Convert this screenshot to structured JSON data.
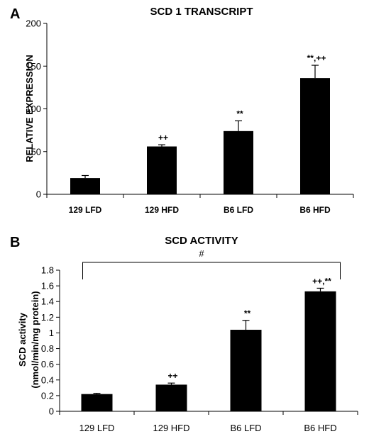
{
  "colors": {
    "bar": "#000000",
    "axis": "#000000",
    "background": "#ffffff"
  },
  "panels": [
    {
      "letter": "A",
      "title": "SCD 1 TRANSCRIPT",
      "ylabel": "RELATIVE EXPRESSION",
      "ylim": [
        0,
        200
      ],
      "yticks": [
        "0",
        "50",
        "100",
        "150",
        "200"
      ],
      "categories": [
        "129 LFD",
        "129 HFD",
        "B6 LFD",
        "B6 HFD"
      ],
      "values": [
        19,
        56,
        74,
        136
      ],
      "errors": [
        3,
        2,
        12,
        15
      ],
      "annotations": [
        "",
        "++",
        "**",
        "**,++"
      ]
    },
    {
      "letter": "B",
      "title": "SCD ACTIVITY",
      "ylabel": "SCD activity",
      "ylabel2": "(nmol/min/mg protein)",
      "ylim": [
        0,
        1.8
      ],
      "yticks": [
        "0",
        "0.2",
        "0.4",
        "0.6",
        "0.8",
        "1",
        "1.2",
        "1.4",
        "1.6",
        "1.8"
      ],
      "categories": [
        "129 LFD",
        "129 HFD",
        "B6 LFD",
        "B6 HFD"
      ],
      "values": [
        0.22,
        0.34,
        1.04,
        1.53
      ],
      "errors": [
        0.01,
        0.02,
        0.12,
        0.04
      ],
      "annotations": [
        "",
        "++",
        "**",
        "++,**"
      ],
      "bracket_label": "#"
    }
  ],
  "chart_data": [
    {
      "type": "bar",
      "title": "SCD 1 TRANSCRIPT",
      "ylabel": "RELATIVE EXPRESSION",
      "categories": [
        "129 LFD",
        "129 HFD",
        "B6 LFD",
        "B6 HFD"
      ],
      "values": [
        19,
        56,
        74,
        136
      ],
      "errors": [
        3,
        2,
        12,
        15
      ],
      "ylim": [
        0,
        200
      ],
      "annotations": [
        "",
        "++",
        "**",
        "**,++"
      ]
    },
    {
      "type": "bar",
      "title": "SCD ACTIVITY",
      "ylabel": "SCD activity (nmol/min/mg protein)",
      "categories": [
        "129 LFD",
        "129 HFD",
        "B6 LFD",
        "B6 HFD"
      ],
      "values": [
        0.22,
        0.34,
        1.04,
        1.53
      ],
      "errors": [
        0.01,
        0.02,
        0.12,
        0.04
      ],
      "ylim": [
        0,
        1.8
      ],
      "annotations": [
        "",
        "++",
        "**",
        "++,**"
      ]
    }
  ]
}
